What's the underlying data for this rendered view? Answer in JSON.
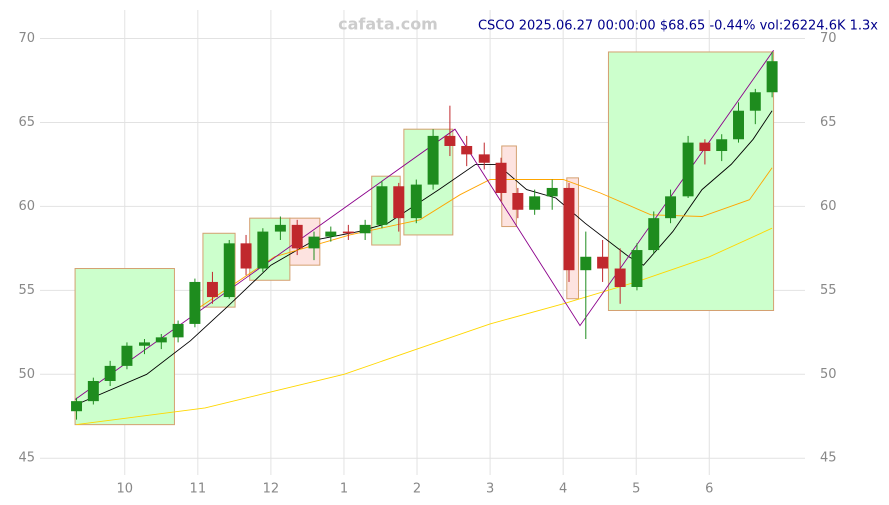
{
  "chart_data": {
    "type": "candlestick",
    "title": "CSCO 2025.06.27 00:00:00 $68.65 -0.44% vol:26224.6K 1.3x",
    "watermark": "cafata.com",
    "up_color": "#1e8c1e",
    "down_color": "#c0282d",
    "grid": true,
    "xlim": [
      -1.16,
      9.31
    ],
    "ylim": [
      44,
      71.7
    ],
    "xticks": [
      {
        "value": 0,
        "label": "10"
      },
      {
        "value": 1,
        "label": "11"
      },
      {
        "value": 2,
        "label": "12"
      },
      {
        "value": 3,
        "label": "1"
      },
      {
        "value": 4,
        "label": "2"
      },
      {
        "value": 5,
        "label": "3"
      },
      {
        "value": 6,
        "label": "4"
      },
      {
        "value": 7,
        "label": "5"
      },
      {
        "value": 8,
        "label": "6"
      }
    ],
    "yticks": [
      45,
      50,
      55,
      60,
      65,
      70
    ],
    "x": [
      -0.66,
      -0.43,
      -0.2,
      0.03,
      0.27,
      0.5,
      0.73,
      0.96,
      1.2,
      1.43,
      1.66,
      1.89,
      2.13,
      2.36,
      2.59,
      2.82,
      3.06,
      3.29,
      3.52,
      3.75,
      3.99,
      4.22,
      4.45,
      4.68,
      4.92,
      5.15,
      5.38,
      5.61,
      5.85,
      6.08,
      6.31,
      6.54,
      6.78,
      7.01,
      7.24,
      7.47,
      7.71,
      7.94,
      8.17,
      8.4,
      8.63,
      8.86
    ],
    "open": [
      47.8,
      48.4,
      49.6,
      50.5,
      51.7,
      51.9,
      52.2,
      53.0,
      55.5,
      54.6,
      57.8,
      56.3,
      58.5,
      58.9,
      57.5,
      58.2,
      58.5,
      58.4,
      58.9,
      61.2,
      59.3,
      61.3,
      64.2,
      63.6,
      63.1,
      62.6,
      60.8,
      59.8,
      60.6,
      61.1,
      56.2,
      57.0,
      56.3,
      55.2,
      57.4,
      59.3,
      60.6,
      63.8,
      63.3,
      64.0,
      65.7,
      66.8
    ],
    "high": [
      48.6,
      49.8,
      50.8,
      51.9,
      52.1,
      52.4,
      53.2,
      55.7,
      56.1,
      58.0,
      58.3,
      58.7,
      59.4,
      59.2,
      58.5,
      58.8,
      58.9,
      59.2,
      61.5,
      61.4,
      61.6,
      64.6,
      66.0,
      64.2,
      63.8,
      62.9,
      61.1,
      61.0,
      61.6,
      61.4,
      58.5,
      58.0,
      57.5,
      57.8,
      59.7,
      61.0,
      64.2,
      64.0,
      64.3,
      66.2,
      67.0,
      69.2
    ],
    "low": [
      47.3,
      48.2,
      49.3,
      50.3,
      51.2,
      51.5,
      51.9,
      52.8,
      54.2,
      54.5,
      55.9,
      56.1,
      58.0,
      57.1,
      56.8,
      57.9,
      58.0,
      58.0,
      58.7,
      58.5,
      59.0,
      61.0,
      63.0,
      62.4,
      62.2,
      60.3,
      59.3,
      59.5,
      59.8,
      55.5,
      52.1,
      55.5,
      54.2,
      55.0,
      57.2,
      59.0,
      60.5,
      62.5,
      62.7,
      63.8,
      64.9,
      66.5
    ],
    "close": [
      48.4,
      49.6,
      50.5,
      51.7,
      51.9,
      52.2,
      53.0,
      55.5,
      54.6,
      57.8,
      56.3,
      58.5,
      58.9,
      57.5,
      58.2,
      58.5,
      58.4,
      58.9,
      61.2,
      59.3,
      61.3,
      64.2,
      63.6,
      63.1,
      62.6,
      60.8,
      59.8,
      60.6,
      61.1,
      56.2,
      57.0,
      56.3,
      55.2,
      57.4,
      59.3,
      60.6,
      63.8,
      63.3,
      64.0,
      65.7,
      66.8,
      68.65
    ],
    "boxes": [
      {
        "x": [
          -0.68,
          0.68
        ],
        "y": [
          47.0,
          56.3
        ],
        "color": "#ccffcc"
      },
      {
        "x": [
          1.07,
          1.51
        ],
        "y": [
          54.0,
          58.4
        ],
        "color": "#ccffcc"
      },
      {
        "x": [
          1.71,
          2.26
        ],
        "y": [
          55.6,
          59.3
        ],
        "color": "#ccffcc"
      },
      {
        "x": [
          2.26,
          2.67
        ],
        "y": [
          56.5,
          59.3
        ],
        "color": "#fde3e0"
      },
      {
        "x": [
          3.38,
          3.77
        ],
        "y": [
          57.7,
          61.8
        ],
        "color": "#ccffcc"
      },
      {
        "x": [
          3.82,
          4.49
        ],
        "y": [
          58.3,
          64.6
        ],
        "color": "#ccffcc"
      },
      {
        "x": [
          5.16,
          5.36
        ],
        "y": [
          58.8,
          63.6
        ],
        "color": "#fde3e0"
      },
      {
        "x": [
          6.05,
          6.21
        ],
        "y": [
          54.5,
          61.7
        ],
        "color": "#fde3e0"
      },
      {
        "x": [
          6.62,
          8.88
        ],
        "y": [
          53.8,
          69.2
        ],
        "color": "#ccffcc"
      }
    ],
    "lines": [
      {
        "color": "#000000",
        "x": [
          -0.66,
          0.3,
          0.9,
          1.4,
          2.0,
          2.6,
          3.2,
          3.6,
          4.3,
          4.8,
          5.1,
          5.5,
          5.9,
          6.3,
          6.9,
          7.1,
          7.5,
          7.9,
          8.3,
          8.6,
          8.86
        ],
        "values": [
          48.2,
          50.0,
          52.0,
          54.0,
          56.5,
          58.0,
          58.5,
          59.0,
          61.0,
          62.5,
          62.5,
          61.0,
          60.5,
          59.0,
          57.0,
          56.5,
          58.5,
          61.0,
          62.5,
          64.0,
          65.7
        ]
      },
      {
        "color": "#ffa500",
        "x": [
          0.96,
          2.05,
          3.08,
          4.04,
          4.59,
          5.0,
          6.0,
          6.51,
          7.2,
          7.9,
          8.55,
          8.86
        ],
        "values": [
          53.8,
          57.0,
          58.3,
          59.2,
          60.7,
          61.6,
          61.6,
          60.8,
          59.5,
          59.4,
          60.4,
          62.3
        ]
      },
      {
        "color": "#ffd700",
        "x": [
          -0.66,
          1.1,
          2.05,
          3.0,
          4.0,
          5.0,
          6.0,
          7.0,
          8.0,
          8.86
        ],
        "values": [
          47.0,
          48.0,
          49.0,
          50.0,
          51.5,
          53.0,
          54.2,
          55.5,
          57.0,
          58.7
        ]
      },
      {
        "color": "#8b008b",
        "x": [
          -0.68,
          4.52,
          6.23,
          8.88
        ],
        "values": [
          48.5,
          64.6,
          52.9,
          69.3
        ]
      }
    ]
  }
}
